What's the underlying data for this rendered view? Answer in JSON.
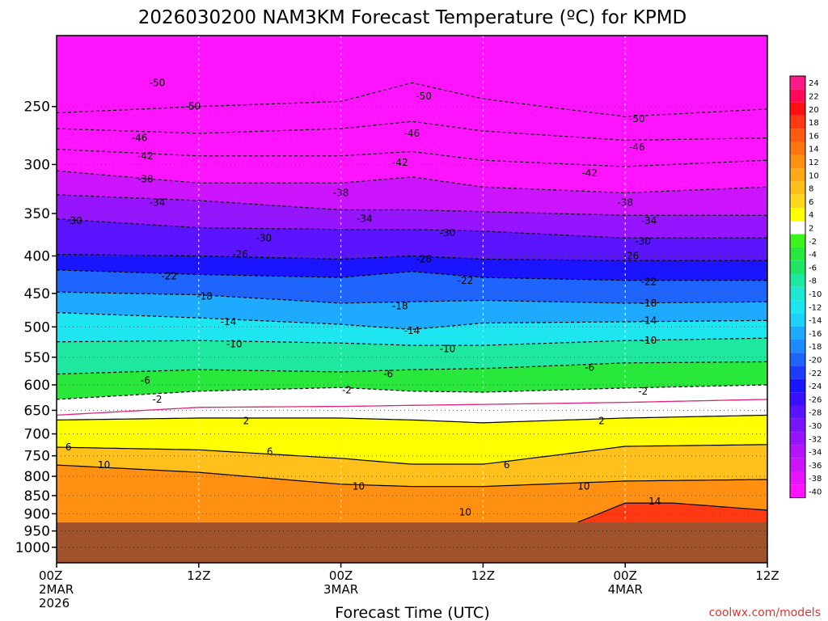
{
  "chart_data": {
    "type": "heatmap",
    "title": "2026030200 NAM3KM Forecast Temperature (ºC) for KPMD",
    "xlabel": "Forecast Time (UTC)",
    "ylabel": "",
    "credit": "coolwx.com/models",
    "y_scale": "log-pressure",
    "ylim": [
      1050,
      200
    ],
    "y_ticks": [
      250,
      300,
      350,
      400,
      450,
      500,
      550,
      600,
      650,
      700,
      750,
      800,
      850,
      900,
      950,
      1000
    ],
    "x_ticks": [
      {
        "hour": 0,
        "lines": [
          "00Z",
          "2MAR",
          "2026"
        ]
      },
      {
        "hour": 12,
        "lines": [
          "12Z"
        ]
      },
      {
        "hour": 24,
        "lines": [
          "00Z",
          "3MAR"
        ]
      },
      {
        "hour": 36,
        "lines": [
          "12Z"
        ]
      },
      {
        "hour": 48,
        "lines": [
          "00Z",
          "4MAR"
        ]
      },
      {
        "hour": 60,
        "lines": [
          "12Z"
        ]
      }
    ],
    "xlim": [
      0,
      60
    ],
    "surface_pressure_hpa": 925,
    "colorbar": {
      "labels": [
        "24",
        "22",
        "20",
        "18",
        "16",
        "14",
        "12",
        "10",
        "8",
        "6",
        "4",
        "2",
        "-2",
        "-4",
        "-6",
        "-8",
        "-10",
        "-12",
        "-14",
        "-16",
        "-18",
        "-20",
        "-22",
        "-24",
        "-26",
        "-28",
        "-30",
        "-32",
        "-34",
        "-36",
        "-38",
        "-40"
      ],
      "colors": [
        "#ff1a8c",
        "#ff0a5a",
        "#ff1010",
        "#ff3a12",
        "#ff5a12",
        "#ff7512",
        "#ff9012",
        "#ffa818",
        "#ffc01c",
        "#ffd81c",
        "#ffff00",
        "#ffffff",
        "#3cf41c",
        "#28e83c",
        "#1ee664",
        "#1ee8a0",
        "#1ee8d2",
        "#1ee6f0",
        "#1ed0fa",
        "#1eaaff",
        "#1e8aff",
        "#1e64ff",
        "#1e3cff",
        "#1a14ff",
        "#3a10ff",
        "#5a14ff",
        "#7a14ff",
        "#9614ff",
        "#b414ff",
        "#cc14ff",
        "#e614ff",
        "#ff14ff"
      ]
    },
    "contours": [
      {
        "temp": -50,
        "pressure_by_hour": [
          [
            0,
            255
          ],
          [
            12,
            250
          ],
          [
            24,
            246
          ],
          [
            30,
            232
          ],
          [
            36,
            244
          ],
          [
            48,
            258
          ],
          [
            60,
            252
          ]
        ],
        "labels": [
          [
            28,
            234
          ],
          [
            96,
            1
          ],
          [
            300,
            248
          ],
          [
            2,
            5
          ]
        ]
      },
      {
        "temp": -46,
        "pressure_by_hour": [
          [
            0,
            268
          ],
          [
            12,
            272
          ],
          [
            24,
            268
          ],
          [
            30,
            262
          ],
          [
            36,
            270
          ],
          [
            48,
            278
          ],
          [
            60,
            276
          ]
        ]
      },
      {
        "temp": -42,
        "pressure_by_hour": [
          [
            0,
            286
          ],
          [
            12,
            292
          ],
          [
            24,
            292
          ],
          [
            30,
            288
          ],
          [
            36,
            296
          ],
          [
            48,
            302
          ],
          [
            60,
            296
          ]
        ]
      },
      {
        "temp": -38,
        "pressure_by_hour": [
          [
            0,
            306
          ],
          [
            12,
            318
          ],
          [
            24,
            318
          ],
          [
            30,
            312
          ],
          [
            36,
            322
          ],
          [
            48,
            328
          ],
          [
            60,
            322
          ]
        ]
      },
      {
        "temp": -34,
        "pressure_by_hour": [
          [
            0,
            330
          ],
          [
            12,
            336
          ],
          [
            24,
            346
          ],
          [
            30,
            346
          ],
          [
            36,
            348
          ],
          [
            48,
            352
          ],
          [
            60,
            352
          ]
        ]
      },
      {
        "temp": -30,
        "pressure_by_hour": [
          [
            0,
            356
          ],
          [
            12,
            366
          ],
          [
            24,
            368
          ],
          [
            30,
            368
          ],
          [
            36,
            370
          ],
          [
            48,
            378
          ],
          [
            60,
            378
          ]
        ]
      },
      {
        "temp": -26,
        "pressure_by_hour": [
          [
            0,
            398
          ],
          [
            12,
            400
          ],
          [
            24,
            404
          ],
          [
            30,
            400
          ],
          [
            36,
            404
          ],
          [
            48,
            406
          ],
          [
            60,
            406
          ]
        ]
      },
      {
        "temp": -22,
        "pressure_by_hour": [
          [
            0,
            418
          ],
          [
            12,
            424
          ],
          [
            24,
            428
          ],
          [
            30,
            420
          ],
          [
            36,
            428
          ],
          [
            48,
            432
          ],
          [
            60,
            432
          ]
        ]
      },
      {
        "temp": -18,
        "pressure_by_hour": [
          [
            0,
            448
          ],
          [
            12,
            452
          ],
          [
            24,
            464
          ],
          [
            30,
            462
          ],
          [
            36,
            460
          ],
          [
            48,
            464
          ],
          [
            60,
            462
          ]
        ]
      },
      {
        "temp": -14,
        "pressure_by_hour": [
          [
            0,
            478
          ],
          [
            12,
            486
          ],
          [
            24,
            496
          ],
          [
            30,
            504
          ],
          [
            36,
            494
          ],
          [
            48,
            492
          ],
          [
            60,
            490
          ]
        ]
      },
      {
        "temp": -10,
        "pressure_by_hour": [
          [
            0,
            524
          ],
          [
            12,
            522
          ],
          [
            24,
            526
          ],
          [
            30,
            530
          ],
          [
            36,
            530
          ],
          [
            48,
            522
          ],
          [
            60,
            518
          ]
        ]
      },
      {
        "temp": -6,
        "pressure_by_hour": [
          [
            0,
            580
          ],
          [
            12,
            572
          ],
          [
            24,
            576
          ],
          [
            30,
            572
          ],
          [
            36,
            570
          ],
          [
            48,
            560
          ],
          [
            60,
            558
          ]
        ]
      },
      {
        "temp": -2,
        "pressure_by_hour": [
          [
            0,
            628
          ],
          [
            12,
            612
          ],
          [
            24,
            605
          ],
          [
            30,
            612
          ],
          [
            36,
            614
          ],
          [
            48,
            606
          ],
          [
            60,
            600
          ]
        ]
      },
      {
        "temp": 0,
        "pressure_by_hour": [
          [
            0,
            660
          ],
          [
            12,
            644
          ],
          [
            24,
            642
          ],
          [
            30,
            640
          ],
          [
            36,
            638
          ],
          [
            48,
            634
          ],
          [
            60,
            628
          ]
        ]
      },
      {
        "temp": 2,
        "pressure_by_hour": [
          [
            0,
            670
          ],
          [
            12,
            666
          ],
          [
            24,
            666
          ],
          [
            30,
            670
          ],
          [
            36,
            676
          ],
          [
            48,
            666
          ],
          [
            60,
            660
          ]
        ]
      },
      {
        "temp": 6,
        "pressure_by_hour": [
          [
            0,
            730
          ],
          [
            12,
            736
          ],
          [
            24,
            756
          ],
          [
            30,
            770
          ],
          [
            36,
            770
          ],
          [
            48,
            728
          ],
          [
            60,
            724
          ]
        ]
      },
      {
        "temp": 10,
        "pressure_by_hour": [
          [
            0,
            772
          ],
          [
            12,
            790
          ],
          [
            24,
            820
          ],
          [
            30,
            826
          ],
          [
            36,
            826
          ],
          [
            48,
            812
          ],
          [
            60,
            808
          ]
        ]
      },
      {
        "temp": 14,
        "pressure_by_hour": [
          [
            44,
            924
          ],
          [
            48,
            870
          ],
          [
            52,
            870
          ],
          [
            56,
            880
          ],
          [
            60,
            890
          ]
        ]
      }
    ],
    "contour_labels": [
      {
        "text": "-50",
        "hour": 8.5,
        "p": 232
      },
      {
        "text": "-50",
        "hour": 31,
        "p": 242
      },
      {
        "text": "-50",
        "hour": 11.5,
        "p": 250
      },
      {
        "text": "-50",
        "hour": 49,
        "p": 260
      },
      {
        "text": "-46",
        "hour": 7,
        "p": 276
      },
      {
        "text": "-46",
        "hour": 30,
        "p": 272
      },
      {
        "text": "-46",
        "hour": 49,
        "p": 284
      },
      {
        "text": "-42",
        "hour": 7.5,
        "p": 292
      },
      {
        "text": "-42",
        "hour": 29,
        "p": 298
      },
      {
        "text": "-42",
        "hour": 45,
        "p": 308
      },
      {
        "text": "-38",
        "hour": 7.5,
        "p": 314
      },
      {
        "text": "-38",
        "hour": 24,
        "p": 328
      },
      {
        "text": "-38",
        "hour": 48,
        "p": 338
      },
      {
        "text": "-34",
        "hour": 8.5,
        "p": 338
      },
      {
        "text": "-34",
        "hour": 26,
        "p": 356
      },
      {
        "text": "-34",
        "hour": 50,
        "p": 358
      },
      {
        "text": "-30",
        "hour": 1.5,
        "p": 358
      },
      {
        "text": "-30",
        "hour": 17.5,
        "p": 378
      },
      {
        "text": "-30",
        "hour": 33,
        "p": 372
      },
      {
        "text": "-30",
        "hour": 49.5,
        "p": 382
      },
      {
        "text": "-26",
        "hour": 15.5,
        "p": 398
      },
      {
        "text": "-26",
        "hour": 31,
        "p": 404
      },
      {
        "text": "-26",
        "hour": 48.5,
        "p": 400
      },
      {
        "text": "-22",
        "hour": 9.5,
        "p": 426
      },
      {
        "text": "-22",
        "hour": 34.5,
        "p": 432
      },
      {
        "text": "-22",
        "hour": 50,
        "p": 434
      },
      {
        "text": "-18",
        "hour": 12.5,
        "p": 454
      },
      {
        "text": "-18",
        "hour": 29,
        "p": 468
      },
      {
        "text": "-18",
        "hour": 50,
        "p": 464
      },
      {
        "text": "-14",
        "hour": 14.5,
        "p": 492
      },
      {
        "text": "-14",
        "hour": 30,
        "p": 506
      },
      {
        "text": "-14",
        "hour": 50,
        "p": 490
      },
      {
        "text": "-10",
        "hour": 15,
        "p": 528
      },
      {
        "text": "-10",
        "hour": 33,
        "p": 536
      },
      {
        "text": "-10",
        "hour": 50,
        "p": 522
      },
      {
        "text": "-6",
        "hour": 7.5,
        "p": 592
      },
      {
        "text": "-6",
        "hour": 28,
        "p": 580
      },
      {
        "text": "-6",
        "hour": 45,
        "p": 568
      },
      {
        "text": "-2",
        "hour": 8.5,
        "p": 628
      },
      {
        "text": "-2",
        "hour": 24.5,
        "p": 610
      },
      {
        "text": "-2",
        "hour": 49.5,
        "p": 612
      },
      {
        "text": "2",
        "hour": 16,
        "p": 672
      },
      {
        "text": "2",
        "hour": 46,
        "p": 672
      },
      {
        "text": "6",
        "hour": 1,
        "p": 730
      },
      {
        "text": "6",
        "hour": 18,
        "p": 740
      },
      {
        "text": "6",
        "hour": 38,
        "p": 772
      },
      {
        "text": "10",
        "hour": 4,
        "p": 772
      },
      {
        "text": "10",
        "hour": 25.5,
        "p": 826
      },
      {
        "text": "10",
        "hour": 34.5,
        "p": 896
      },
      {
        "text": "10",
        "hour": 44.5,
        "p": 826
      },
      {
        "text": "14",
        "hour": 50.5,
        "p": 866
      }
    ]
  }
}
